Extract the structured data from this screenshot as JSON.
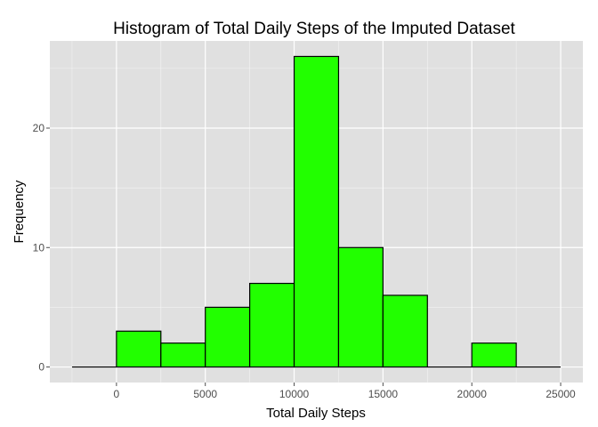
{
  "chart_data": {
    "type": "bar",
    "title": "Histogram of Total Daily Steps of the Imputed Dataset",
    "xlabel": "Total Daily Steps",
    "ylabel": "Frequency",
    "bin_width": 2500,
    "bins": [
      {
        "start": -2500,
        "end": 0,
        "count": 0
      },
      {
        "start": 0,
        "end": 2500,
        "count": 3
      },
      {
        "start": 2500,
        "end": 5000,
        "count": 2
      },
      {
        "start": 5000,
        "end": 7500,
        "count": 5
      },
      {
        "start": 7500,
        "end": 10000,
        "count": 7
      },
      {
        "start": 10000,
        "end": 12500,
        "count": 26
      },
      {
        "start": 12500,
        "end": 15000,
        "count": 10
      },
      {
        "start": 15000,
        "end": 17500,
        "count": 6
      },
      {
        "start": 17500,
        "end": 20000,
        "count": 0
      },
      {
        "start": 20000,
        "end": 22500,
        "count": 2
      },
      {
        "start": 22500,
        "end": 25000,
        "count": 0
      }
    ],
    "xlim": [
      -3750,
      26250
    ],
    "ylim": [
      -1.3,
      27.3
    ],
    "x_ticks": [
      0,
      5000,
      10000,
      15000,
      20000,
      25000
    ],
    "x_tick_labels": [
      "0",
      "5000",
      "10000",
      "15000",
      "20000",
      "25000"
    ],
    "y_ticks": [
      0,
      10,
      20
    ],
    "y_tick_labels": [
      "0",
      "10",
      "20"
    ],
    "fill_color": "#22ff00",
    "outline_color": "#000000",
    "panel_color": "#e0e0e0",
    "grid_color": "#ffffff",
    "grid": true,
    "legend": "none"
  }
}
